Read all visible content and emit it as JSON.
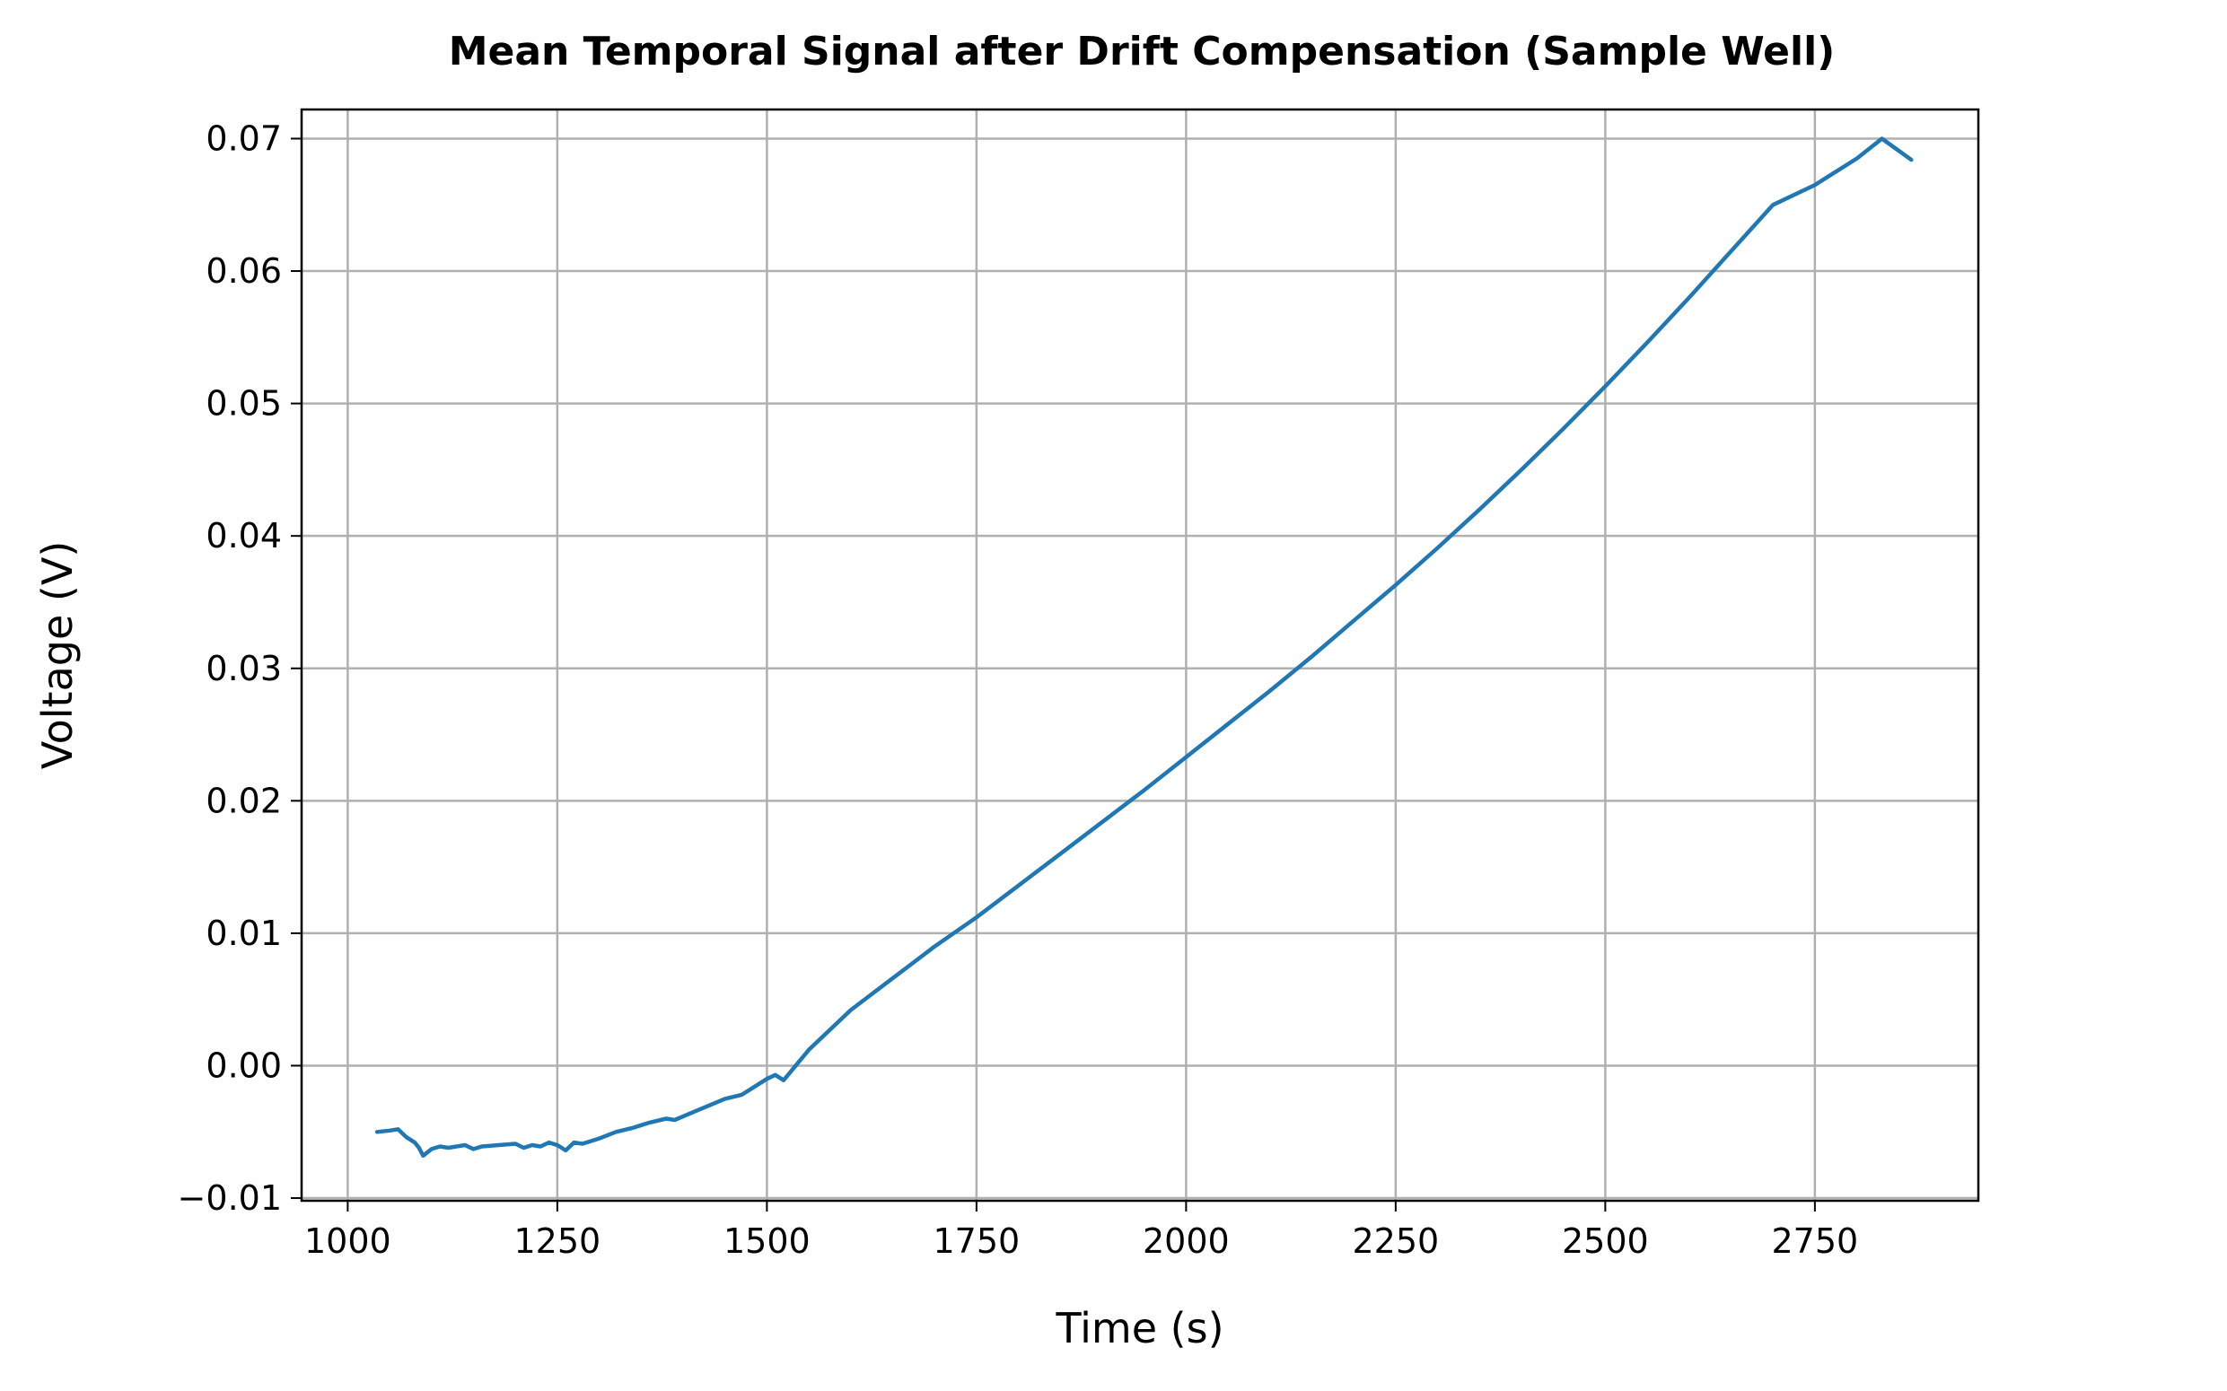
{
  "chart_data": {
    "type": "line",
    "title": "Mean Temporal Signal after Drift Compensation (Sample Well)",
    "xlabel": "Time (s)",
    "ylabel": "Voltage (V)",
    "xlim": [
      945,
      2945
    ],
    "ylim": [
      -0.0102,
      0.0722
    ],
    "xticks": [
      1000,
      1250,
      1500,
      1750,
      2000,
      2250,
      2500,
      2750
    ],
    "xtick_labels": [
      "1000",
      "1250",
      "1500",
      "1750",
      "2000",
      "2250",
      "2500",
      "2750"
    ],
    "yticks": [
      -0.01,
      0.0,
      0.01,
      0.02,
      0.03,
      0.04,
      0.05,
      0.06,
      0.07
    ],
    "ytick_labels": [
      "−0.01",
      "0.00",
      "0.01",
      "0.02",
      "0.03",
      "0.04",
      "0.05",
      "0.06",
      "0.07"
    ],
    "grid": true,
    "legend": "none",
    "series": [
      {
        "color": "#1f77b4",
        "x": [
          1035,
          1050,
          1060,
          1070,
          1080,
          1085,
          1090,
          1100,
          1110,
          1120,
          1140,
          1150,
          1160,
          1180,
          1200,
          1210,
          1220,
          1230,
          1240,
          1250,
          1260,
          1270,
          1280,
          1300,
          1320,
          1340,
          1360,
          1380,
          1390,
          1420,
          1450,
          1470,
          1480,
          1500,
          1510,
          1520,
          1550,
          1600,
          1650,
          1700,
          1750,
          1800,
          1850,
          1900,
          1950,
          2000,
          2050,
          2100,
          2150,
          2200,
          2250,
          2300,
          2350,
          2400,
          2450,
          2500,
          2550,
          2600,
          2650,
          2700,
          2750,
          2800,
          2830,
          2865
        ],
        "y": [
          -0.005,
          -0.0049,
          -0.0048,
          -0.0054,
          -0.0058,
          -0.0062,
          -0.0068,
          -0.0063,
          -0.0061,
          -0.0062,
          -0.006,
          -0.0063,
          -0.0061,
          -0.006,
          -0.0059,
          -0.0062,
          -0.006,
          -0.0061,
          -0.0058,
          -0.006,
          -0.0064,
          -0.0058,
          -0.0059,
          -0.0055,
          -0.005,
          -0.0047,
          -0.0043,
          -0.004,
          -0.0041,
          -0.0033,
          -0.0025,
          -0.0022,
          -0.0018,
          -0.001,
          -0.0007,
          -0.0011,
          0.0012,
          0.0042,
          0.0066,
          0.009,
          0.0112,
          0.0136,
          0.016,
          0.0184,
          0.0208,
          0.0233,
          0.0258,
          0.0283,
          0.0309,
          0.0336,
          0.0363,
          0.0391,
          0.042,
          0.045,
          0.0481,
          0.0513,
          0.0546,
          0.058,
          0.0615,
          0.065,
          0.0665,
          0.0685,
          0.07,
          0.0684
        ]
      }
    ]
  }
}
